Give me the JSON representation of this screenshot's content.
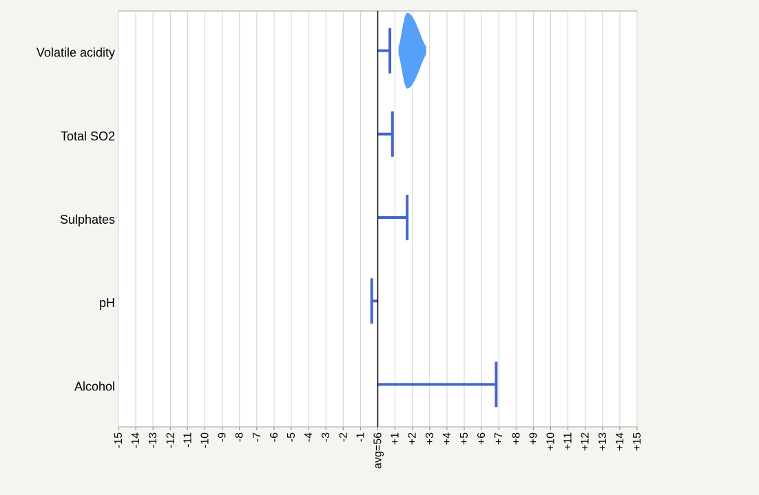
{
  "chart_data": {
    "type": "bar",
    "title": "",
    "xlabel": "",
    "ylabel": "",
    "baseline_label": "avg=56",
    "xlim": [
      -15,
      15
    ],
    "grid": true,
    "x_ticks": [
      -15,
      -14,
      -13,
      -12,
      -11,
      -10,
      -9,
      -8,
      -7,
      -6,
      -5,
      -4,
      -3,
      -2,
      -1,
      0,
      1,
      2,
      3,
      4,
      5,
      6,
      7,
      8,
      9,
      10,
      11,
      12,
      13,
      14,
      15
    ],
    "x_tick_labels": [
      "-15",
      "-14",
      "-13",
      "-12",
      "-11",
      "-10",
      "-9",
      "-8",
      "-7",
      "-6",
      "-5",
      "-4",
      "-3",
      "-2",
      "-1",
      "avg=56",
      "+1",
      "+2",
      "+3",
      "+4",
      "+5",
      "+6",
      "+7",
      "+8",
      "+9",
      "+10",
      "+11",
      "+12",
      "+13",
      "+14",
      "+15"
    ],
    "categories": [
      "Volatile acidity",
      "Total SO2",
      "Sulphates",
      "pH",
      "Alcohol"
    ],
    "values": [
      0.7,
      0.85,
      1.7,
      -0.35,
      6.85
    ],
    "distribution": {
      "category": "Volatile acidity",
      "x_range": [
        1.2,
        2.8
      ],
      "peak": 1.7
    },
    "colors": {
      "bar": "#4466cc",
      "distribution": "#55a0f8",
      "grid": "#d0d0d0",
      "baseline": "#000000",
      "plot_bg": "#ffffff",
      "page_bg": "#f5f5f0"
    }
  }
}
